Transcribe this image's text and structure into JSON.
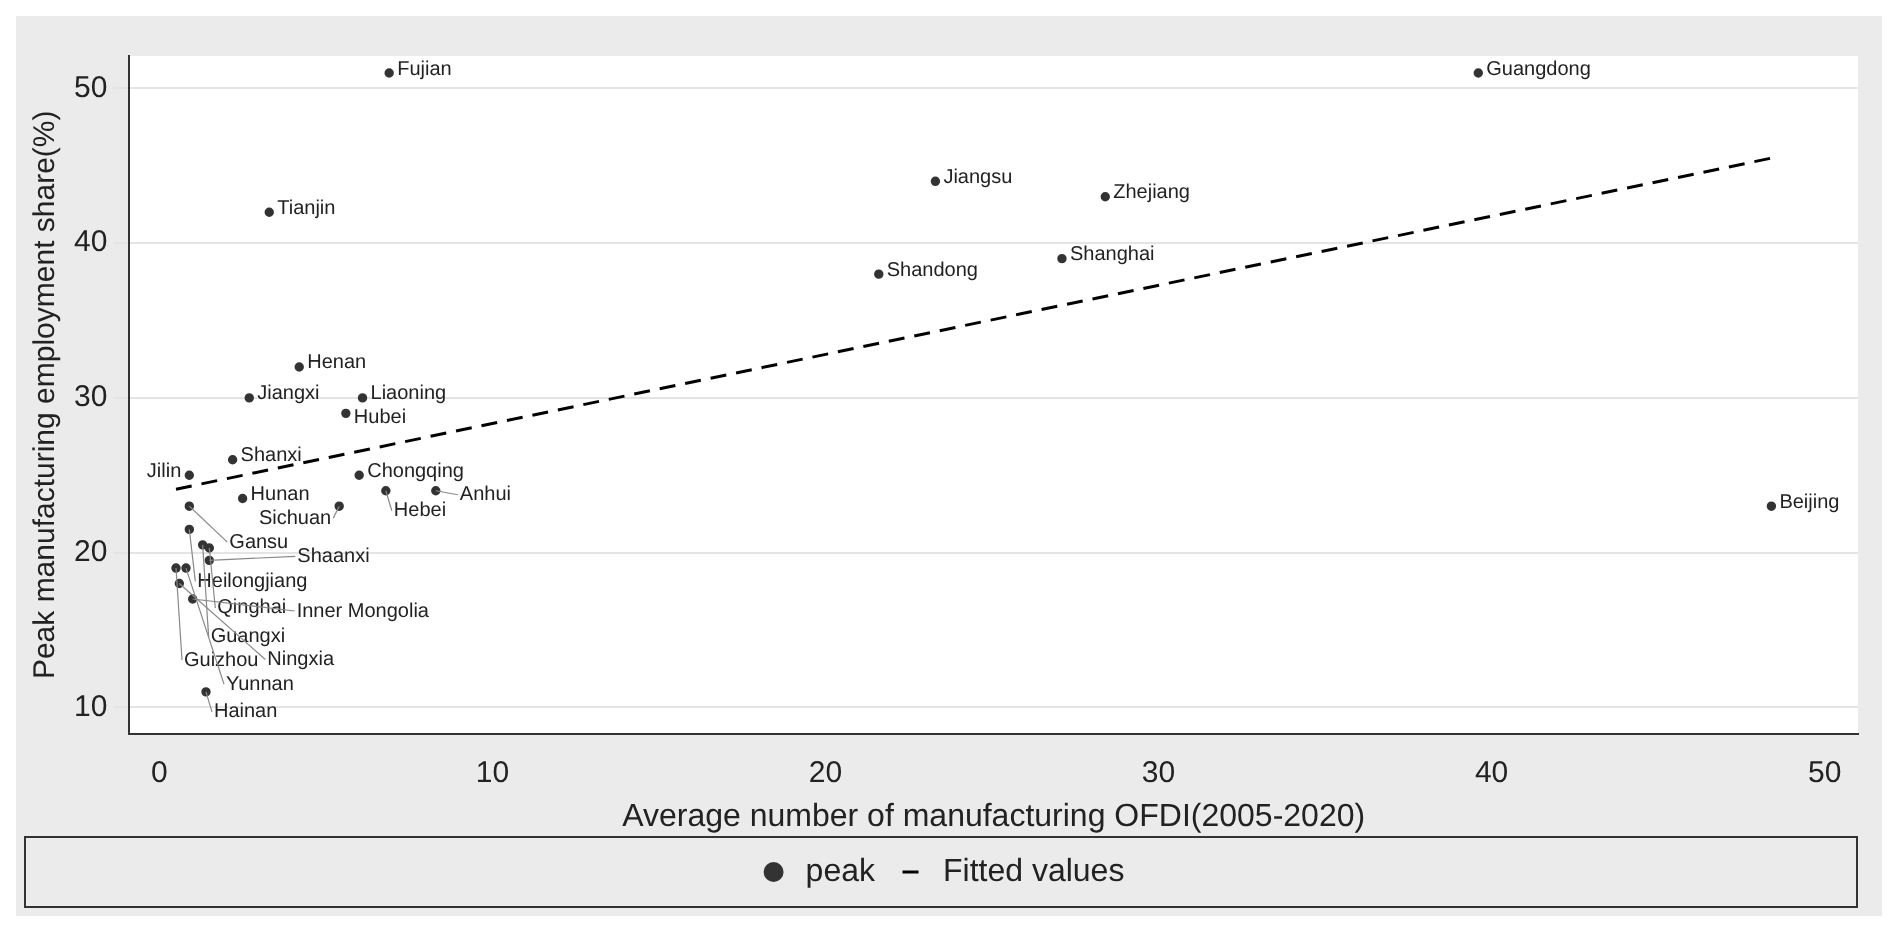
{
  "chart_data": {
    "type": "scatter",
    "xlabel": "Average number of manufacturing OFDI(2005-2020)",
    "ylabel": "Peak manufacturing employment share(%)",
    "xlim": [
      -0.9,
      51
    ],
    "xticks": [
      0,
      10,
      20,
      30,
      40,
      50
    ],
    "ylim": [
      8.3,
      52.1
    ],
    "yticks": [
      10,
      20,
      30,
      40,
      50
    ],
    "grid": "y",
    "legend": "bottom",
    "series": [
      {
        "name": "peak",
        "type": "scatter",
        "color": "#333333",
        "marker": "circle",
        "x": [
          6.9,
          39.6,
          3.3,
          23.3,
          28.4,
          27.1,
          21.6,
          48.4,
          4.2,
          2.7,
          6.1,
          5.6,
          2.2,
          0.9,
          6.0,
          6.8,
          8.3,
          2.5,
          5.4,
          0.9,
          0.9,
          1.5,
          1.3,
          1.5,
          0.5,
          0.8,
          0.6,
          1.0,
          1.4
        ],
        "values": [
          51,
          51,
          42,
          44,
          43,
          39,
          38,
          23,
          32,
          30,
          30,
          29,
          26,
          25,
          25,
          24,
          24,
          23.5,
          23,
          23,
          21.5,
          20.3,
          20.5,
          19.5,
          19,
          19,
          18,
          17,
          11
        ]
      },
      {
        "name": "Fitted values",
        "type": "line",
        "color": "#000000",
        "marker": "none",
        "line_style": "dashed",
        "x": [
          0.5,
          48.4
        ],
        "values": [
          24.1,
          45.5
        ]
      }
    ],
    "annotations": [
      {
        "text": "Fujian",
        "x": 6.9,
        "y": 51
      },
      {
        "text": "Guangdong",
        "x": 39.6,
        "y": 51
      },
      {
        "text": "Tianjin",
        "x": 3.3,
        "y": 42
      },
      {
        "text": "Jiangsu",
        "x": 23.3,
        "y": 44
      },
      {
        "text": "Zhejiang",
        "x": 28.4,
        "y": 43
      },
      {
        "text": "Shanghai",
        "x": 27.1,
        "y": 39
      },
      {
        "text": "Shandong",
        "x": 21.6,
        "y": 38
      },
      {
        "text": "Beijing",
        "x": 48.4,
        "y": 23
      },
      {
        "text": "Henan",
        "x": 4.2,
        "y": 32
      },
      {
        "text": "Jiangxi",
        "x": 2.7,
        "y": 30
      },
      {
        "text": "Liaoning",
        "x": 6.1,
        "y": 30
      },
      {
        "text": "Hubei",
        "x": 5.6,
        "y": 29
      },
      {
        "text": "Shanxi",
        "x": 2.2,
        "y": 26
      },
      {
        "text": "Jilin",
        "x": 0.9,
        "y": 25
      },
      {
        "text": "Chongqing",
        "x": 6.0,
        "y": 25
      },
      {
        "text": "Hebei",
        "x": 6.8,
        "y": 24
      },
      {
        "text": "Anhui",
        "x": 8.3,
        "y": 24
      },
      {
        "text": "Hunan",
        "x": 2.5,
        "y": 23.5
      },
      {
        "text": "Sichuan",
        "x": 5.4,
        "y": 23
      },
      {
        "text": "Gansu",
        "x": 0.9,
        "y": 23
      },
      {
        "text": "Heilongjiang",
        "x": 0.9,
        "y": 21.5
      },
      {
        "text": "Qinghai",
        "x": 1.5,
        "y": 20.3
      },
      {
        "text": "Guangxi",
        "x": 1.3,
        "y": 20.5
      },
      {
        "text": "Shaanxi",
        "x": 1.5,
        "y": 19.5
      },
      {
        "text": "Guizhou",
        "x": 0.5,
        "y": 19
      },
      {
        "text": "Yunnan",
        "x": 0.8,
        "y": 19
      },
      {
        "text": "Ningxia",
        "x": 0.6,
        "y": 18
      },
      {
        "text": "Inner Mongolia",
        "x": 1.0,
        "y": 17
      },
      {
        "text": "Hainan",
        "x": 1.4,
        "y": 11
      }
    ]
  }
}
